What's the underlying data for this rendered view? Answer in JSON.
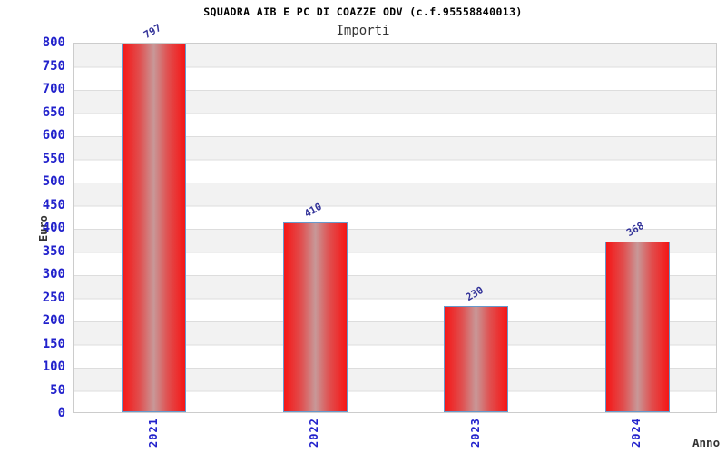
{
  "header": {
    "title": "SQUADRA AIB E PC DI COAZZE ODV (c.f.95558840013)",
    "subtitle": "Importi"
  },
  "chart_data": {
    "type": "bar",
    "title": "SQUADRA AIB E PC DI COAZZE ODV (c.f.95558840013)",
    "subtitle": "Importi",
    "categories": [
      "2021",
      "2022",
      "2023",
      "2024"
    ],
    "values": [
      797,
      410,
      230,
      368
    ],
    "xlabel": "Anno",
    "ylabel": "Euro",
    "ylim": [
      0,
      800
    ],
    "ytick_step": 50,
    "legend": "none",
    "grid": "horizontal alternating bands with gridlines every 50",
    "bar_value_labels_rotation_deg": -30,
    "xtick_rotation_deg": -90,
    "colors": {
      "bar_edge": "#6699cc",
      "bar_red": "#f51616",
      "bar_center": "#c89898",
      "tick_label": "#2222cc",
      "value_label": "#333399",
      "axis_title": "#333333",
      "title_text": "#000000",
      "band_gray": "#f2f2f2",
      "grid_line": "#dddddd",
      "plot_border": "#cccccc",
      "background": "#ffffff"
    }
  }
}
